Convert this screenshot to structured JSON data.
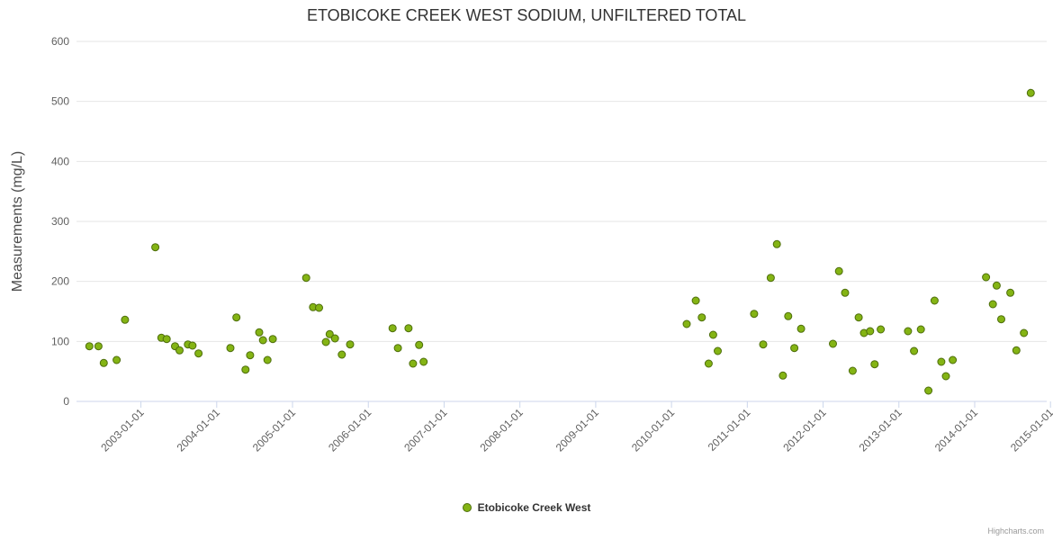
{
  "credits": "Highcharts.com",
  "colors": {
    "marker_fill": "#84b414",
    "marker_stroke": "#4e6e0c",
    "grid": "#e6e6e6",
    "axis_line": "#ccd6eb",
    "tick_text": "#606060",
    "title_text": "#333333",
    "credits_text": "#999999"
  },
  "chart_data": {
    "type": "scatter",
    "title": "ETOBICOKE CREEK WEST SODIUM, UNFILTERED TOTAL",
    "xlabel": "",
    "ylabel": "Measurements (mg/L)",
    "ylim": [
      0,
      600
    ],
    "y_ticks": [
      0,
      100,
      200,
      300,
      400,
      500,
      600
    ],
    "xlim": [
      2002.15,
      2014.95
    ],
    "x_ticks": [
      {
        "value": 2003,
        "label": "2003-01-01"
      },
      {
        "value": 2004,
        "label": "2004-01-01"
      },
      {
        "value": 2005,
        "label": "2005-01-01"
      },
      {
        "value": 2006,
        "label": "2006-01-01"
      },
      {
        "value": 2007,
        "label": "2007-01-01"
      },
      {
        "value": 2008,
        "label": "2008-01-01"
      },
      {
        "value": 2009,
        "label": "2009-01-01"
      },
      {
        "value": 2010,
        "label": "2010-01-01"
      },
      {
        "value": 2011,
        "label": "2011-01-01"
      },
      {
        "value": 2012,
        "label": "2012-01-01"
      },
      {
        "value": 2013,
        "label": "2013-01-01"
      },
      {
        "value": 2014,
        "label": "2014-01-01"
      },
      {
        "value": 2015,
        "label": "2015-01-01"
      }
    ],
    "grid": "horizontal",
    "legend_position": "bottom-center",
    "series": [
      {
        "name": "Etobicoke Creek West",
        "points": [
          [
            2002.32,
            92
          ],
          [
            2002.44,
            92
          ],
          [
            2002.51,
            64
          ],
          [
            2002.68,
            69
          ],
          [
            2002.79,
            136
          ],
          [
            2003.19,
            257
          ],
          [
            2003.27,
            106
          ],
          [
            2003.34,
            104
          ],
          [
            2003.45,
            92
          ],
          [
            2003.51,
            85
          ],
          [
            2003.62,
            95
          ],
          [
            2003.68,
            93
          ],
          [
            2003.76,
            80
          ],
          [
            2004.18,
            89
          ],
          [
            2004.26,
            140
          ],
          [
            2004.38,
            53
          ],
          [
            2004.44,
            77
          ],
          [
            2004.56,
            115
          ],
          [
            2004.61,
            102
          ],
          [
            2004.67,
            69
          ],
          [
            2004.74,
            104
          ],
          [
            2005.18,
            206
          ],
          [
            2005.27,
            157
          ],
          [
            2005.35,
            156
          ],
          [
            2005.44,
            99
          ],
          [
            2005.49,
            112
          ],
          [
            2005.56,
            105
          ],
          [
            2005.65,
            78
          ],
          [
            2005.76,
            95
          ],
          [
            2006.32,
            122
          ],
          [
            2006.39,
            89
          ],
          [
            2006.53,
            122
          ],
          [
            2006.59,
            63
          ],
          [
            2006.67,
            94
          ],
          [
            2006.73,
            66
          ],
          [
            2010.2,
            129
          ],
          [
            2010.32,
            168
          ],
          [
            2010.4,
            140
          ],
          [
            2010.49,
            63
          ],
          [
            2010.55,
            111
          ],
          [
            2010.61,
            84
          ],
          [
            2011.09,
            146
          ],
          [
            2011.21,
            95
          ],
          [
            2011.31,
            206
          ],
          [
            2011.39,
            262
          ],
          [
            2011.47,
            43
          ],
          [
            2011.54,
            142
          ],
          [
            2011.62,
            89
          ],
          [
            2011.71,
            121
          ],
          [
            2012.13,
            96
          ],
          [
            2012.21,
            217
          ],
          [
            2012.29,
            181
          ],
          [
            2012.39,
            51
          ],
          [
            2012.47,
            140
          ],
          [
            2012.54,
            114
          ],
          [
            2012.62,
            117
          ],
          [
            2012.68,
            62
          ],
          [
            2012.76,
            120
          ],
          [
            2013.12,
            117
          ],
          [
            2013.2,
            84
          ],
          [
            2013.29,
            120
          ],
          [
            2013.39,
            18
          ],
          [
            2013.47,
            168
          ],
          [
            2013.56,
            66
          ],
          [
            2013.62,
            42
          ],
          [
            2013.71,
            69
          ],
          [
            2014.15,
            207
          ],
          [
            2014.24,
            162
          ],
          [
            2014.29,
            193
          ],
          [
            2014.35,
            137
          ],
          [
            2014.47,
            181
          ],
          [
            2014.55,
            85
          ],
          [
            2014.65,
            114
          ],
          [
            2014.74,
            514
          ]
        ]
      }
    ]
  }
}
